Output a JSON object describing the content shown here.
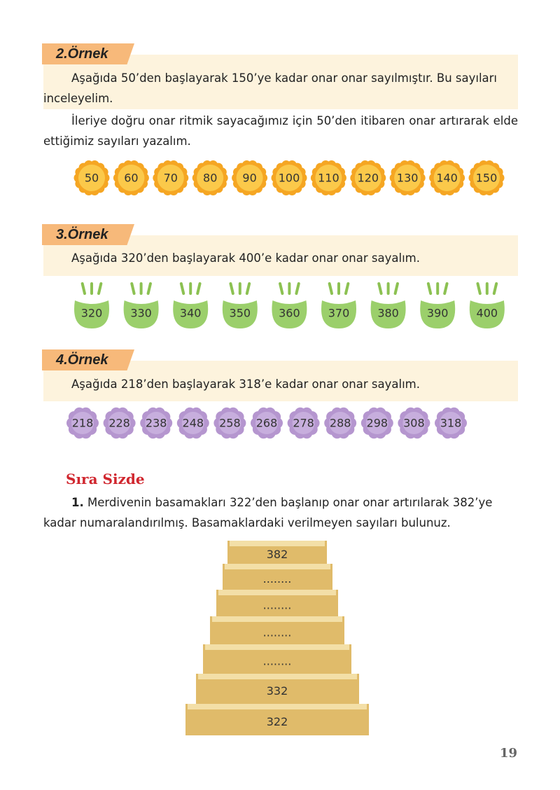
{
  "examples": [
    {
      "label": "2.Örnek",
      "text": "Aşağıda 50’den başlayarak 150’ye kadar onar onar sayılmıştır. Bu sayıları inceleyelim.",
      "note": "İleriye doğru onar ritmik sayacağımız için 50’den itibaren onar artırarak elde ettiğimiz sayıları yazalım.",
      "items": [
        "50",
        "60",
        "70",
        "80",
        "90",
        "100",
        "110",
        "120",
        "130",
        "140",
        "150"
      ]
    },
    {
      "label": "3.Örnek",
      "text": "Aşağıda 320’den başlayarak 400’e kadar onar onar sayalım.",
      "items": [
        "320",
        "330",
        "340",
        "350",
        "360",
        "370",
        "380",
        "390",
        "400"
      ]
    },
    {
      "label": "4.Örnek",
      "text": "Aşağıda 218’den başlayarak 318’e kadar onar onar sayalım.",
      "items": [
        "218",
        "228",
        "238",
        "248",
        "258",
        "268",
        "278",
        "288",
        "298",
        "308",
        "318"
      ]
    }
  ],
  "section": {
    "title": "Sıra Sizde",
    "number": "1.",
    "text": "Merdivenin basamakları 322’den başlanıp onar onar artırılarak 382’ye kadar numaralandırılmış. Basamaklardaki verilmeyen sayıları bulunuz.",
    "steps": [
      "382",
      "........",
      "........",
      "........",
      "........",
      "332",
      "322"
    ]
  },
  "page_number": "19"
}
